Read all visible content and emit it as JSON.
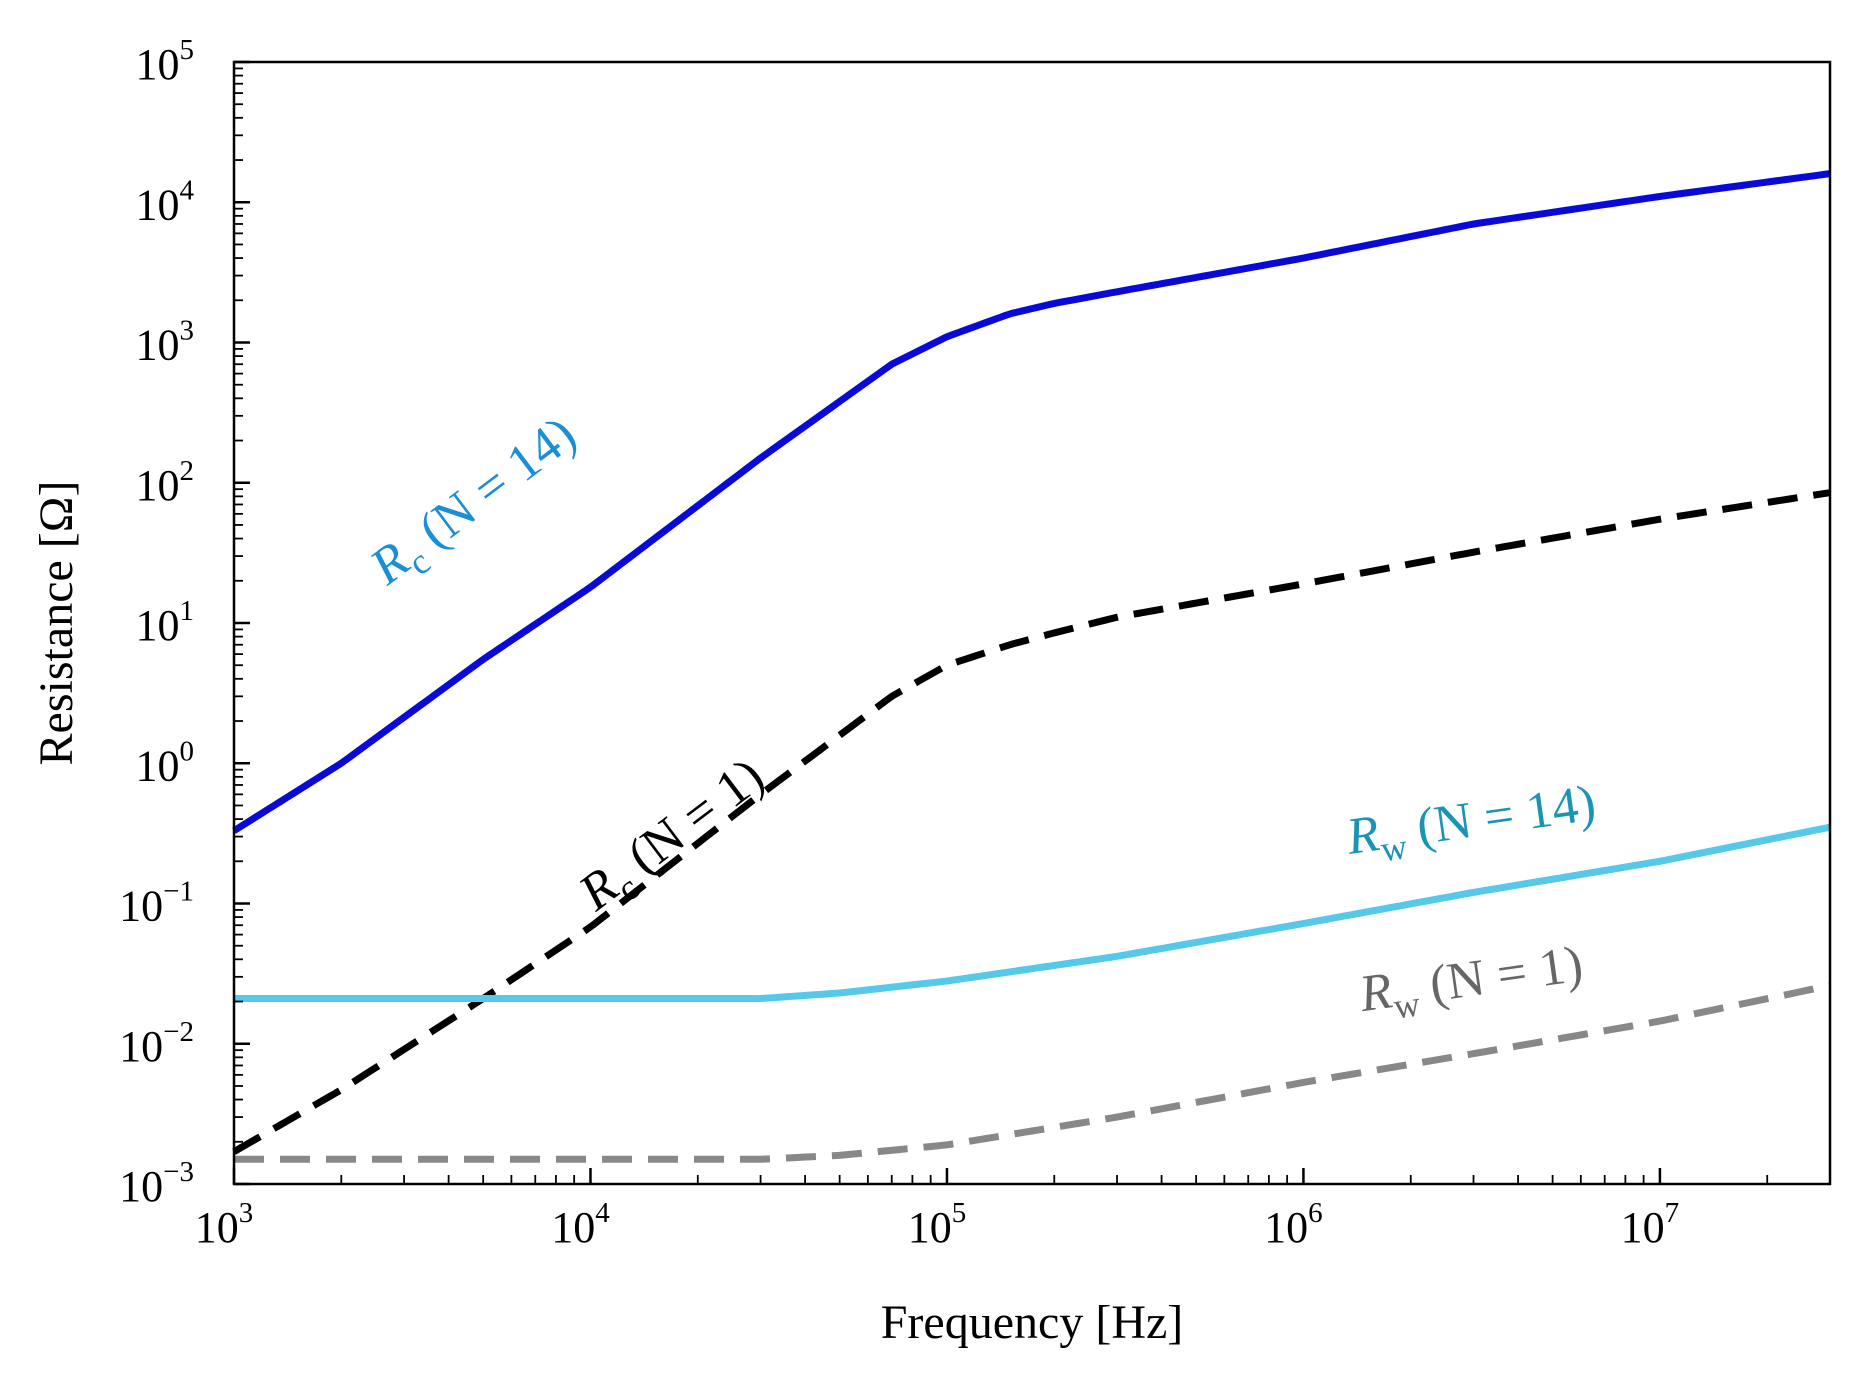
{
  "chart_data": {
    "type": "line",
    "xscale": "log",
    "yscale": "log",
    "xlabel": "Frequency [Hz]",
    "ylabel": "Resistance [Ω]",
    "xlim": [
      1000,
      30000000
    ],
    "ylim": [
      0.001,
      100000
    ],
    "grid": false,
    "x_ticks": [
      {
        "value": 1000,
        "base": "10",
        "exp": "3"
      },
      {
        "value": 10000,
        "base": "10",
        "exp": "4"
      },
      {
        "value": 100000,
        "base": "10",
        "exp": "5"
      },
      {
        "value": 1000000,
        "base": "10",
        "exp": "6"
      },
      {
        "value": 10000000,
        "base": "10",
        "exp": "7"
      }
    ],
    "y_ticks": [
      {
        "value": 0.001,
        "base": "10",
        "exp": "−3"
      },
      {
        "value": 0.01,
        "base": "10",
        "exp": "−2"
      },
      {
        "value": 0.1,
        "base": "10",
        "exp": "−1"
      },
      {
        "value": 1,
        "base": "10",
        "exp": "0"
      },
      {
        "value": 10,
        "base": "10",
        "exp": "1"
      },
      {
        "value": 100,
        "base": "10",
        "exp": "2"
      },
      {
        "value": 1000,
        "base": "10",
        "exp": "3"
      },
      {
        "value": 10000,
        "base": "10",
        "exp": "4"
      },
      {
        "value": 100000,
        "base": "10",
        "exp": "5"
      }
    ],
    "series": [
      {
        "id": "rc-n14",
        "label_main": "R",
        "label_sub": "c",
        "label_rest": " (N = 14)",
        "color": "#0a0ad8",
        "label_color": "#1a8fd6",
        "dashed": false,
        "x": [
          1000,
          2000,
          5000,
          10000,
          30000,
          70000,
          100000,
          150000,
          200000,
          300000,
          1000000,
          3000000,
          10000000,
          30000000
        ],
        "values": [
          0.33,
          1.0,
          5.5,
          18,
          150,
          700,
          1100,
          1600,
          1900,
          2300,
          4000,
          7000,
          11000,
          16000
        ]
      },
      {
        "id": "rc-n1",
        "label_main": "R",
        "label_sub": "c",
        "label_rest": " (N = 1)",
        "color": "#000000",
        "label_color": "#000000",
        "dashed": true,
        "x": [
          1000,
          2000,
          5000,
          10000,
          30000,
          70000,
          100000,
          150000,
          200000,
          300000,
          1000000,
          3000000,
          10000000,
          30000000
        ],
        "values": [
          0.0017,
          0.0047,
          0.021,
          0.068,
          0.6,
          3.0,
          5.0,
          7.0,
          8.5,
          11,
          19,
          32,
          55,
          85
        ]
      },
      {
        "id": "rw-n14",
        "label_main": "R",
        "label_sub": "w",
        "label_rest": " (N = 14)",
        "color": "#56c8ea",
        "label_color": "#1a94b4",
        "dashed": false,
        "x": [
          1000,
          10000,
          30000,
          50000,
          100000,
          300000,
          1000000,
          3000000,
          10000000,
          30000000
        ],
        "values": [
          0.021,
          0.021,
          0.021,
          0.023,
          0.028,
          0.042,
          0.072,
          0.12,
          0.2,
          0.35
        ]
      },
      {
        "id": "rw-n1",
        "label_main": "R",
        "label_sub": "w",
        "label_rest": " (N = 1)",
        "color": "#888888",
        "label_color": "#666666",
        "dashed": true,
        "x": [
          1000,
          10000,
          30000,
          50000,
          100000,
          300000,
          1000000,
          3000000,
          10000000,
          30000000
        ],
        "values": [
          0.0015,
          0.0015,
          0.0015,
          0.0016,
          0.0019,
          0.003,
          0.0053,
          0.0085,
          0.0145,
          0.026
        ]
      }
    ],
    "annotations": [
      {
        "series": "rc-n14",
        "at_x": 5000,
        "at_y": 60,
        "angle": -37
      },
      {
        "series": "rc-n1",
        "at_x": 18000,
        "at_y": 0.25,
        "angle": -37
      },
      {
        "series": "rw-n14",
        "at_x": 3000000,
        "at_y": 0.3,
        "angle": -8
      },
      {
        "series": "rw-n1",
        "at_x": 3000000,
        "at_y": 0.022,
        "angle": -8
      }
    ]
  }
}
